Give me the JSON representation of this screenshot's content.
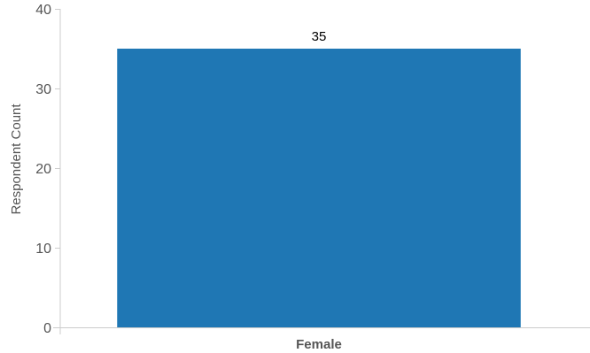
{
  "chart_data": {
    "type": "bar",
    "categories": [
      "Female"
    ],
    "values": [
      35
    ],
    "data_labels": [
      "35"
    ],
    "ylabel": "Respondent Count",
    "xlabel": "",
    "ylim": [
      0,
      40
    ],
    "yticks": [
      0,
      10,
      20,
      30,
      40
    ],
    "grid": false,
    "legend": "none",
    "colors": {
      "bar": "#1f77b4",
      "axis": "#cccccc",
      "tick_text": "#555555",
      "data_label": "#000000"
    }
  }
}
